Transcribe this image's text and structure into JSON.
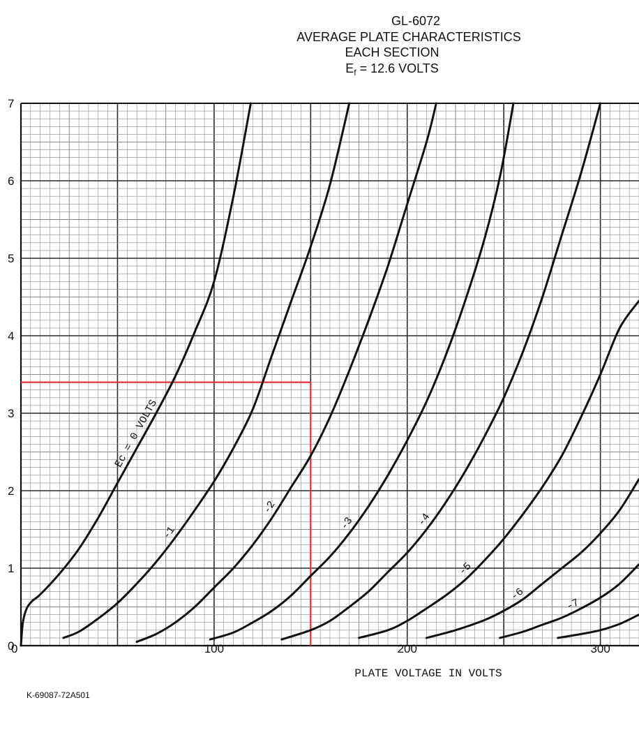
{
  "title_block": {
    "line1": "GL-6072",
    "line2": "AVERAGE PLATE CHARACTERISTICS",
    "line3": "EACH SECTION",
    "line4_main": "E",
    "line4_sub": "f",
    "line4_rest": " = 12.6 VOLTS"
  },
  "figure_code": "K-69087-72A501",
  "colors": {
    "curve": "#111111",
    "grid_fine": "#8a8a8a",
    "grid_major": "#2a2a2a",
    "marker": "#e0303a"
  },
  "chart_data": {
    "type": "line",
    "title": "GL-6072 AVERAGE PLATE CHARACTERISTICS EACH SECTION Ef = 12.6 VOLTS",
    "xlabel": "PLATE VOLTAGE IN VOLTS",
    "ylabel": "",
    "xlim": [
      0,
      320
    ],
    "ylim": [
      0,
      7
    ],
    "grid": true,
    "x_ticks": [
      "0",
      "100",
      "200",
      "300"
    ],
    "y_ticks": [
      "0",
      "1",
      "2",
      "3",
      "4",
      "5",
      "6",
      "7"
    ],
    "series": [
      {
        "name": "Ec = 0 VOLTS",
        "x": [
          0,
          1,
          3,
          6,
          10,
          20,
          30,
          40,
          50,
          60,
          70,
          80,
          90,
          100,
          110,
          119
        ],
        "y": [
          0,
          0.3,
          0.48,
          0.58,
          0.66,
          0.93,
          1.25,
          1.65,
          2.1,
          2.55,
          3.0,
          3.48,
          4.05,
          4.7,
          5.8,
          7.0
        ]
      },
      {
        "name": "-1",
        "x": [
          22,
          30,
          40,
          50,
          60,
          70,
          80,
          90,
          100,
          110,
          120,
          130,
          140,
          150,
          160,
          170
        ],
        "y": [
          0.1,
          0.18,
          0.35,
          0.55,
          0.8,
          1.08,
          1.4,
          1.75,
          2.12,
          2.55,
          3.05,
          3.75,
          4.45,
          5.15,
          5.95,
          7.0
        ]
      },
      {
        "name": "-2",
        "x": [
          60,
          70,
          80,
          90,
          100,
          110,
          120,
          130,
          140,
          150,
          160,
          170,
          180,
          190,
          200,
          210,
          215
        ],
        "y": [
          0.05,
          0.15,
          0.3,
          0.5,
          0.75,
          1.0,
          1.3,
          1.65,
          2.05,
          2.45,
          2.95,
          3.55,
          4.2,
          4.9,
          5.7,
          6.5,
          7.0
        ]
      },
      {
        "name": "-3",
        "x": [
          98,
          110,
          120,
          130,
          140,
          150,
          160,
          170,
          180,
          190,
          200,
          210,
          220,
          230,
          240,
          248,
          255
        ],
        "y": [
          0.08,
          0.17,
          0.3,
          0.45,
          0.65,
          0.9,
          1.15,
          1.45,
          1.8,
          2.2,
          2.65,
          3.15,
          3.75,
          4.45,
          5.25,
          6.05,
          7.0
        ]
      },
      {
        "name": "-4",
        "x": [
          135,
          150,
          160,
          170,
          180,
          190,
          200,
          210,
          220,
          230,
          240,
          250,
          260,
          270,
          280,
          290,
          300
        ],
        "y": [
          0.08,
          0.2,
          0.32,
          0.5,
          0.7,
          0.95,
          1.2,
          1.5,
          1.85,
          2.25,
          2.7,
          3.2,
          3.8,
          4.5,
          5.3,
          6.1,
          7.0
        ]
      },
      {
        "name": "-5",
        "x": [
          175,
          190,
          200,
          210,
          220,
          230,
          240,
          250,
          260,
          270,
          280,
          290,
          300,
          310,
          320
        ],
        "y": [
          0.1,
          0.2,
          0.32,
          0.48,
          0.65,
          0.85,
          1.1,
          1.38,
          1.7,
          2.05,
          2.45,
          2.95,
          3.5,
          4.1,
          4.45
        ]
      },
      {
        "name": "-6",
        "x": [
          210,
          225,
          240,
          250,
          260,
          270,
          280,
          290,
          300,
          310,
          320
        ],
        "y": [
          0.1,
          0.2,
          0.33,
          0.45,
          0.6,
          0.8,
          1.0,
          1.2,
          1.45,
          1.75,
          2.15
        ]
      },
      {
        "name": "-7",
        "x": [
          248,
          260,
          270,
          280,
          290,
          300,
          310,
          320
        ],
        "y": [
          0.1,
          0.18,
          0.27,
          0.36,
          0.48,
          0.62,
          0.8,
          1.05
        ]
      },
      {
        "name": "",
        "x": [
          278,
          290,
          300,
          310,
          320
        ],
        "y": [
          0.1,
          0.15,
          0.2,
          0.28,
          0.4
        ]
      }
    ],
    "annotations": [
      {
        "text": "Ec = 0 VOLTS",
        "series": 0
      },
      {
        "text": "-1",
        "series": 1
      },
      {
        "text": "-2",
        "series": 2
      },
      {
        "text": "-3",
        "series": 3
      },
      {
        "text": "-4",
        "series": 4
      },
      {
        "text": "-5",
        "series": 5
      },
      {
        "text": "-6",
        "series": 6
      },
      {
        "text": "-7",
        "series": 7
      }
    ],
    "reference_lines": {
      "plate_voltage": 150,
      "plate_current": 3.4
    }
  }
}
